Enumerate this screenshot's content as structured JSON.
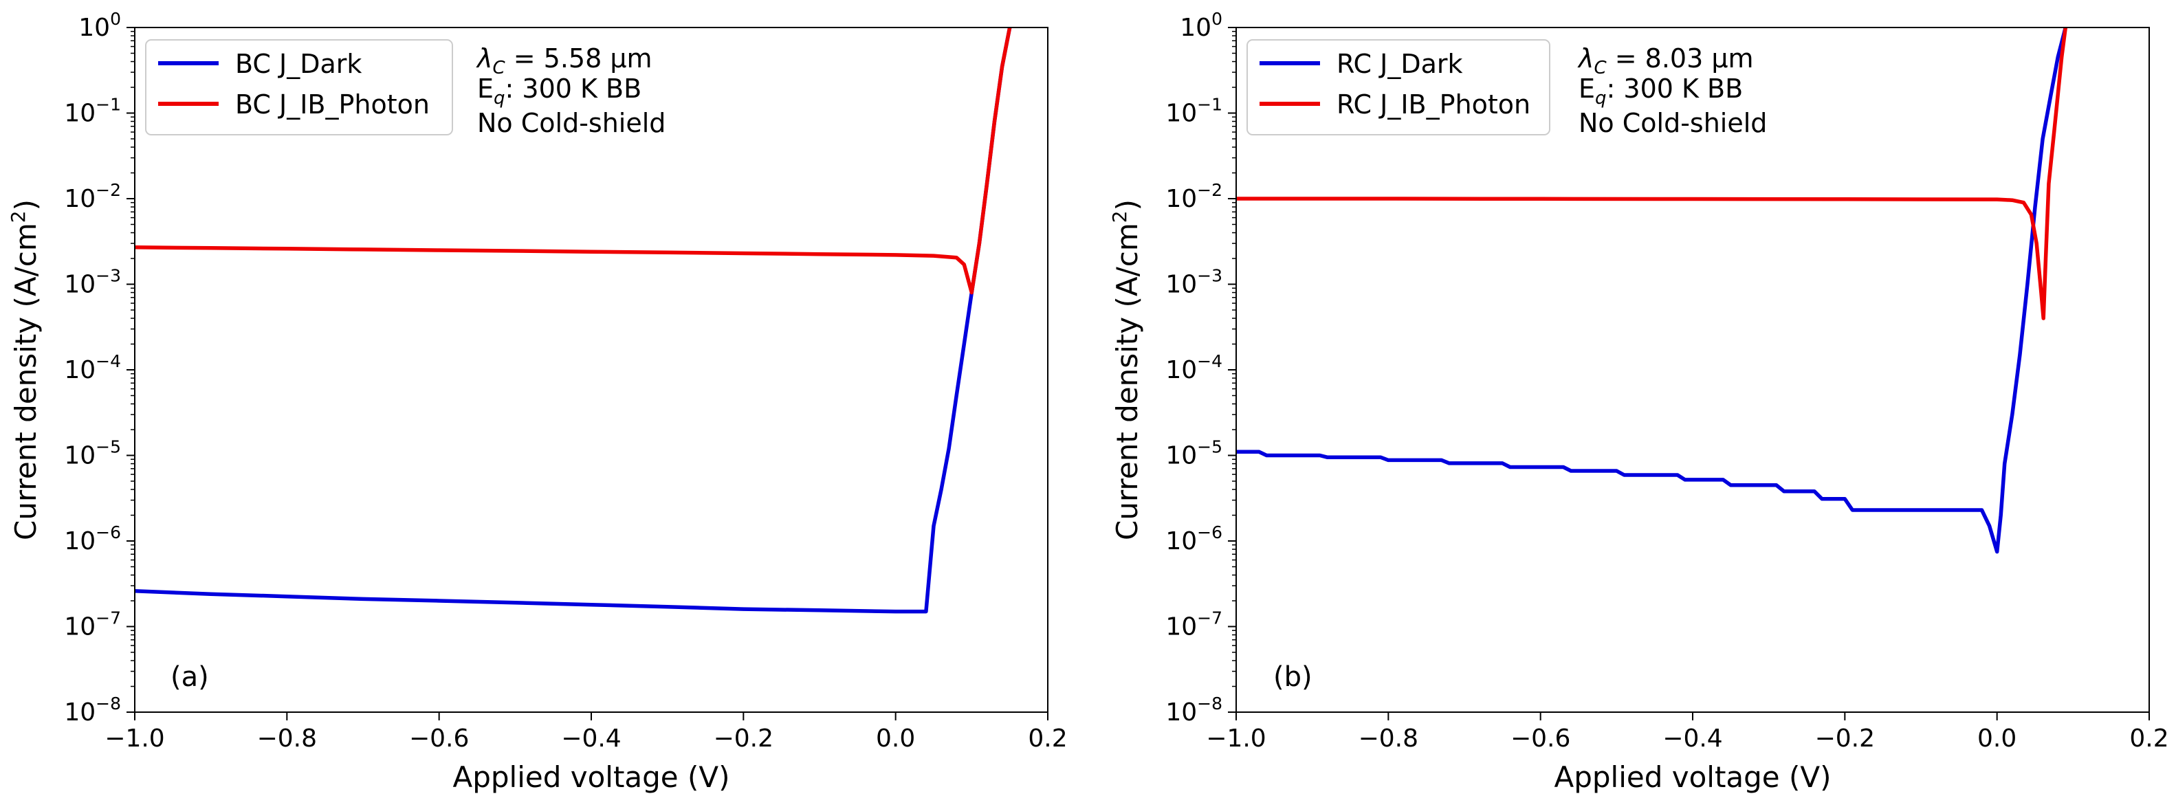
{
  "chart_data": [
    {
      "type": "line",
      "panel_label": "(a)",
      "xlabel": "Applied voltage (V)",
      "ylabel_main": "Current density (A/cm",
      "ylabel_sup": "2",
      "ylabel_close": ")",
      "xscale": "linear",
      "yscale": "log",
      "xlim": [
        -1.0,
        0.2
      ],
      "ylim": [
        1e-08,
        1
      ],
      "x_ticks": [
        -1.0,
        -0.8,
        -0.6,
        -0.4,
        -0.2,
        0.0,
        0.2
      ],
      "x_tick_labels": [
        "−1.0",
        "−0.8",
        "−0.6",
        "−0.4",
        "−0.2",
        "0.0",
        "0.2"
      ],
      "y_tick_exponents": [
        "−8",
        "−7",
        "−6",
        "−5",
        "−4",
        "−3",
        "−2",
        "−1",
        "0"
      ],
      "legend_position": "top-left",
      "annotation": {
        "line1_symbol": "λ",
        "line1_sub": "C",
        "line1_rest": " = 5.58 μm",
        "line2_main": "E",
        "line2_sub": "q",
        "line2_rest": ": 300 K BB",
        "line3": "No Cold-shield"
      },
      "series": [
        {
          "name": "BC J_Dark",
          "color": "#0000dd",
          "x": [
            -1.0,
            -0.9,
            -0.8,
            -0.7,
            -0.6,
            -0.5,
            -0.4,
            -0.3,
            -0.2,
            -0.1,
            0.0,
            0.04,
            0.05,
            0.06,
            0.07,
            0.08,
            0.09,
            0.1,
            0.11,
            0.12,
            0.13,
            0.14,
            0.15
          ],
          "y": [
            2.6e-07,
            2.4e-07,
            2.25e-07,
            2.1e-07,
            2e-07,
            1.9e-07,
            1.8e-07,
            1.7e-07,
            1.6e-07,
            1.55e-07,
            1.5e-07,
            1.5e-07,
            1.5e-06,
            4e-06,
            1.2e-05,
            5e-05,
            0.0002,
            0.0008,
            0.003,
            0.015,
            0.08,
            0.35,
            1.0
          ]
        },
        {
          "name": "BC J_IB_Photon",
          "color": "#ee0000",
          "x": [
            -1.0,
            -0.9,
            -0.8,
            -0.7,
            -0.6,
            -0.5,
            -0.4,
            -0.3,
            -0.2,
            -0.1,
            0.0,
            0.05,
            0.08,
            0.09,
            0.1,
            0.11,
            0.12,
            0.13,
            0.14,
            0.15
          ],
          "y": [
            0.0027,
            0.00265,
            0.0026,
            0.00255,
            0.0025,
            0.00245,
            0.0024,
            0.00235,
            0.0023,
            0.00225,
            0.0022,
            0.00215,
            0.00205,
            0.0017,
            0.0008,
            0.003,
            0.015,
            0.08,
            0.35,
            1.0
          ]
        }
      ]
    },
    {
      "type": "line",
      "panel_label": "(b)",
      "xlabel": "Applied voltage (V)",
      "ylabel_main": "Current density (A/cm",
      "ylabel_sup": "2",
      "ylabel_close": ")",
      "xscale": "linear",
      "yscale": "log",
      "xlim": [
        -1.0,
        0.2
      ],
      "ylim": [
        1e-08,
        1
      ],
      "x_ticks": [
        -1.0,
        -0.8,
        -0.6,
        -0.4,
        -0.2,
        0.0,
        0.2
      ],
      "x_tick_labels": [
        "−1.0",
        "−0.8",
        "−0.6",
        "−0.4",
        "−0.2",
        "0.0",
        "0.2"
      ],
      "y_tick_exponents": [
        "−8",
        "−7",
        "−6",
        "−5",
        "−4",
        "−3",
        "−2",
        "−1",
        "0"
      ],
      "legend_position": "top-left",
      "annotation": {
        "line1_symbol": "λ",
        "line1_sub": "C",
        "line1_rest": " = 8.03 μm",
        "line2_main": "E",
        "line2_sub": "q",
        "line2_rest": ": 300 K BB",
        "line3": "No Cold-shield"
      },
      "series": [
        {
          "name": "RC J_Dark",
          "color": "#0000dd",
          "x": [
            -1.0,
            -0.97,
            -0.96,
            -0.89,
            -0.88,
            -0.81,
            -0.8,
            -0.73,
            -0.72,
            -0.65,
            -0.64,
            -0.57,
            -0.56,
            -0.5,
            -0.49,
            -0.42,
            -0.41,
            -0.36,
            -0.35,
            -0.29,
            -0.28,
            -0.24,
            -0.23,
            -0.2,
            -0.19,
            -0.17,
            -0.16,
            -0.02,
            -0.01,
            0.0,
            0.005,
            0.01,
            0.02,
            0.03,
            0.04,
            0.05,
            0.06,
            0.07,
            0.08,
            0.09
          ],
          "y": [
            1.1e-05,
            1.1e-05,
            1e-05,
            1e-05,
            9.5e-06,
            9.5e-06,
            8.8e-06,
            8.8e-06,
            8.1e-06,
            8.1e-06,
            7.3e-06,
            7.3e-06,
            6.6e-06,
            6.6e-06,
            5.9e-06,
            5.9e-06,
            5.2e-06,
            5.2e-06,
            4.5e-06,
            4.5e-06,
            3.8e-06,
            3.8e-06,
            3.1e-06,
            3.1e-06,
            2.3e-06,
            2.3e-06,
            2.3e-06,
            2.3e-06,
            1.5e-06,
            7.5e-07,
            2e-06,
            8e-06,
            3e-05,
            0.00015,
            0.001,
            0.008,
            0.05,
            0.15,
            0.45,
            1.0
          ]
        },
        {
          "name": "RC J_IB_Photon",
          "color": "#ee0000",
          "x": [
            -1.0,
            -0.8,
            -0.6,
            -0.4,
            -0.2,
            0.0,
            0.02,
            0.035,
            0.045,
            0.052,
            0.058,
            0.061,
            0.064,
            0.068,
            0.075,
            0.085,
            0.09
          ],
          "y": [
            0.01,
            0.01,
            0.00995,
            0.0099,
            0.00985,
            0.0098,
            0.0096,
            0.009,
            0.0065,
            0.003,
            0.0008,
            0.0004,
            0.002,
            0.015,
            0.06,
            0.45,
            1.0
          ]
        }
      ]
    }
  ]
}
